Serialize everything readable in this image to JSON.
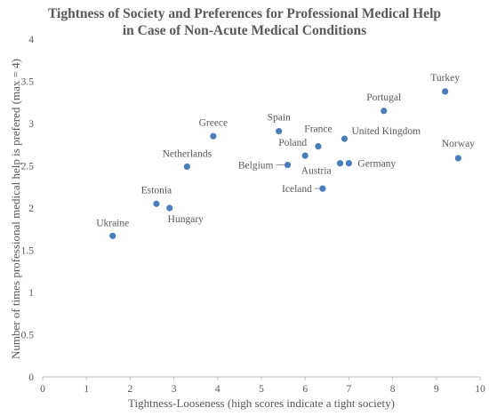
{
  "chart_data": {
    "type": "scatter",
    "title": [
      "Tightness of Society and Preferences for Professional Medical Help",
      "in Case of Non-Acute Medical Conditions"
    ],
    "xlabel": "Tightness-Looseness (high scores indicate a tight society)",
    "ylabel": "Number of times professional medical help is prefered (max = 4)",
    "xlim": [
      0,
      10
    ],
    "ylim": [
      0,
      4
    ],
    "x_ticks": [
      "0",
      "1",
      "2",
      "3",
      "4",
      "5",
      "6",
      "7",
      "8",
      "9",
      "10"
    ],
    "y_ticks": [
      "0",
      "0.5",
      "1",
      "1.5",
      "2",
      "2.5",
      "3",
      "3.5",
      "4"
    ],
    "grid": false,
    "marker_color": "#4a7ebb",
    "points": [
      {
        "label": "Ukraine",
        "x": 1.6,
        "y": 1.67
      },
      {
        "label": "Estonia",
        "x": 2.6,
        "y": 2.05
      },
      {
        "label": "Hungary",
        "x": 2.9,
        "y": 2.0
      },
      {
        "label": "Netherlands",
        "x": 3.3,
        "y": 2.49
      },
      {
        "label": "Greece",
        "x": 3.9,
        "y": 2.85
      },
      {
        "label": "Spain",
        "x": 5.4,
        "y": 2.91
      },
      {
        "label": "Belgium",
        "x": 5.6,
        "y": 2.51
      },
      {
        "label": "Poland",
        "x": 6.0,
        "y": 2.62
      },
      {
        "label": "France",
        "x": 6.3,
        "y": 2.73
      },
      {
        "label": "Iceland",
        "x": 6.4,
        "y": 2.23
      },
      {
        "label": "Austria",
        "x": 6.8,
        "y": 2.53
      },
      {
        "label": "Germany",
        "x": 7.0,
        "y": 2.53
      },
      {
        "label": "United Kingdom",
        "x": 6.9,
        "y": 2.82
      },
      {
        "label": "Portugal",
        "x": 7.8,
        "y": 3.15
      },
      {
        "label": "Turkey",
        "x": 9.2,
        "y": 3.38
      },
      {
        "label": "Norway",
        "x": 9.5,
        "y": 2.59
      }
    ]
  }
}
